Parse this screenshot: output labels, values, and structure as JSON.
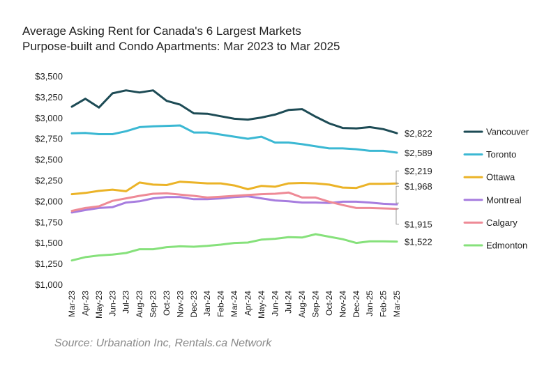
{
  "chart_data": {
    "type": "line",
    "title": "Average Asking Rent for Canada's 6 Largest Markets",
    "subtitle": "Purpose-built and Condo Apartments: Mar 2023 to Mar 2025",
    "xlabel": "",
    "ylabel": "",
    "ylim": [
      1000,
      3500
    ],
    "yticks": [
      "$1,000",
      "$1,250",
      "$1,500",
      "$1,750",
      "$2,000",
      "$2,250",
      "$2,500",
      "$2,750",
      "$3,000",
      "$3,250",
      "$3,500"
    ],
    "grid": false,
    "legend_position": "right",
    "x": [
      "Mar-23",
      "Apr-23",
      "May-23",
      "Jun-23",
      "Jul-23",
      "Aug-23",
      "Sep-23",
      "Oct-23",
      "Nov-23",
      "Dec-23",
      "Jan-24",
      "Feb-24",
      "Mar-24",
      "Apr-24",
      "May-24",
      "Jun-24",
      "Jul-24",
      "Aug-24",
      "Sep-24",
      "Oct-24",
      "Nov-24",
      "Dec-24",
      "Jan-25",
      "Feb-25",
      "Mar-25"
    ],
    "series": [
      {
        "name": "Vancouver",
        "color": "#1d4b55",
        "end_label": "$2,822",
        "values": [
          3140,
          3235,
          3130,
          3300,
          3335,
          3310,
          3335,
          3210,
          3165,
          3060,
          3055,
          3025,
          2995,
          2985,
          3010,
          3045,
          3100,
          3110,
          3020,
          2940,
          2885,
          2880,
          2895,
          2870,
          2822
        ]
      },
      {
        "name": "Toronto",
        "color": "#3bb8d3",
        "end_label": "$2,589",
        "values": [
          2820,
          2825,
          2810,
          2810,
          2845,
          2895,
          2905,
          2910,
          2915,
          2830,
          2830,
          2805,
          2780,
          2755,
          2780,
          2710,
          2710,
          2690,
          2665,
          2640,
          2640,
          2630,
          2610,
          2610,
          2589
        ]
      },
      {
        "name": "Ottawa",
        "color": "#ebb327",
        "end_label": "$2,219",
        "values": [
          2090,
          2105,
          2130,
          2145,
          2125,
          2230,
          2205,
          2200,
          2240,
          2230,
          2220,
          2220,
          2195,
          2150,
          2190,
          2180,
          2220,
          2225,
          2220,
          2205,
          2170,
          2165,
          2215,
          2215,
          2219
        ]
      },
      {
        "name": "Montreal",
        "color": "#a77ddf",
        "end_label": "$1,968",
        "values": [
          1870,
          1900,
          1925,
          1935,
          1990,
          2005,
          2040,
          2055,
          2055,
          2030,
          2030,
          2040,
          2055,
          2065,
          2040,
          2015,
          2005,
          1990,
          1990,
          1985,
          2000,
          2000,
          1990,
          1975,
          1968
        ]
      },
      {
        "name": "Calgary",
        "color": "#ee8a96",
        "end_label": "$1,915",
        "values": [
          1890,
          1925,
          1945,
          2010,
          2040,
          2070,
          2095,
          2100,
          2085,
          2070,
          2050,
          2060,
          2070,
          2080,
          2090,
          2095,
          2110,
          2050,
          2050,
          2000,
          1960,
          1925,
          1925,
          1920,
          1915
        ]
      },
      {
        "name": "Edmonton",
        "color": "#86e17b",
        "end_label": "$1,522",
        "values": [
          1295,
          1335,
          1355,
          1365,
          1385,
          1430,
          1430,
          1455,
          1465,
          1460,
          1470,
          1485,
          1505,
          1510,
          1545,
          1555,
          1575,
          1570,
          1610,
          1580,
          1550,
          1505,
          1525,
          1525,
          1522
        ]
      }
    ]
  },
  "source": "Source: Urbanation Inc, Rentals.ca Network"
}
